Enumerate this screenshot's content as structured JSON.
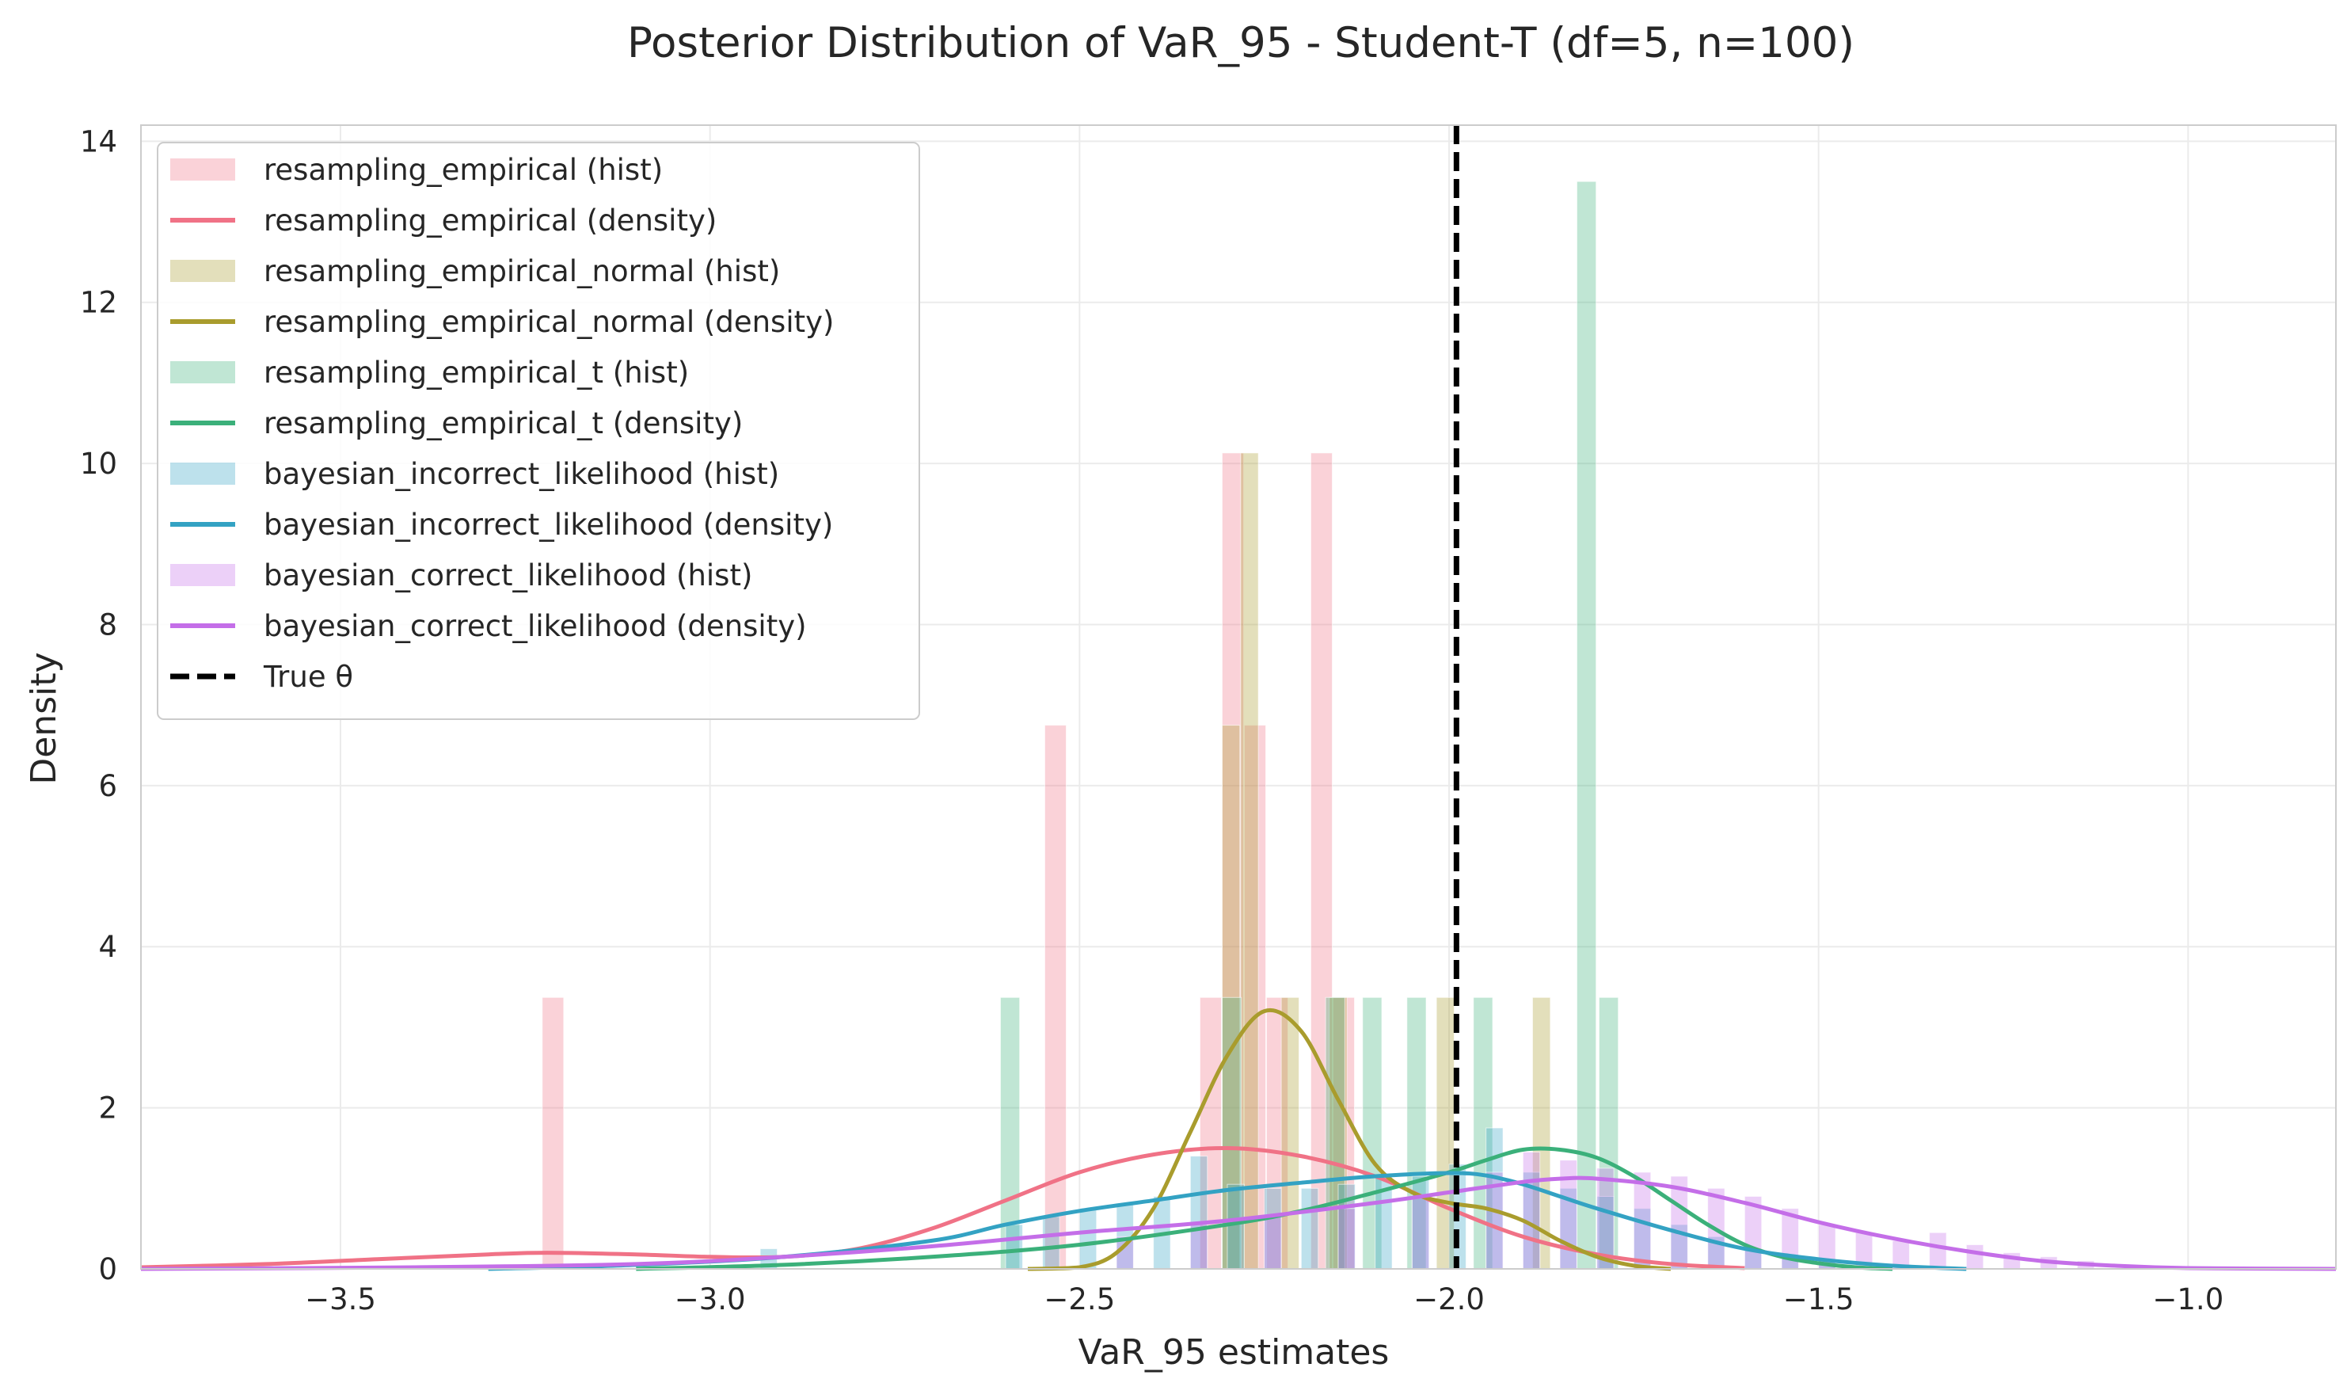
{
  "chart_data": {
    "type": "histogram+density",
    "title": "Posterior Distribution of VaR_95 - Student-T (df=5, n=100)",
    "xlabel": "VaR_95 estimates",
    "ylabel": "Density",
    "xlim": [
      -3.77,
      -0.8
    ],
    "ylim": [
      0,
      14.2
    ],
    "x_ticks": [
      -3.5,
      -3.0,
      -2.5,
      -2.0,
      -1.5,
      -1.0
    ],
    "x_tick_labels": [
      "−3.5",
      "−3.0",
      "−2.5",
      "−2.0",
      "−1.5",
      "−1.0"
    ],
    "y_ticks": [
      0,
      2,
      4,
      6,
      8,
      10,
      12,
      14
    ],
    "y_tick_labels": [
      "0",
      "2",
      "4",
      "6",
      "8",
      "10",
      "12",
      "14"
    ],
    "grid": true,
    "legend_position": "upper-left",
    "true_theta": {
      "label": "True θ",
      "x": -1.99,
      "color": "#000000"
    },
    "series": [
      {
        "name": "resampling_empirical",
        "color": "#f07286",
        "hist_label": "resampling_empirical (hist)",
        "density_label": "resampling_empirical (density)",
        "bin_width": 0.03,
        "hist": [
          {
            "x": -3.227,
            "h": 3.37
          },
          {
            "x": -2.547,
            "h": 6.75
          },
          {
            "x": -2.337,
            "h": 3.37
          },
          {
            "x": -2.307,
            "h": 10.13
          },
          {
            "x": -2.277,
            "h": 6.75
          },
          {
            "x": -2.247,
            "h": 3.37
          },
          {
            "x": -2.187,
            "h": 10.13
          },
          {
            "x": -2.157,
            "h": 3.37
          }
        ],
        "density": [
          [
            -3.77,
            0.02
          ],
          [
            -3.6,
            0.06
          ],
          [
            -3.45,
            0.12
          ],
          [
            -3.3,
            0.18
          ],
          [
            -3.22,
            0.2
          ],
          [
            -3.1,
            0.18
          ],
          [
            -3.0,
            0.15
          ],
          [
            -2.9,
            0.15
          ],
          [
            -2.8,
            0.25
          ],
          [
            -2.7,
            0.5
          ],
          [
            -2.6,
            0.85
          ],
          [
            -2.5,
            1.2
          ],
          [
            -2.4,
            1.42
          ],
          [
            -2.3,
            1.5
          ],
          [
            -2.2,
            1.4
          ],
          [
            -2.1,
            1.15
          ],
          [
            -2.0,
            0.75
          ],
          [
            -1.9,
            0.4
          ],
          [
            -1.8,
            0.18
          ],
          [
            -1.7,
            0.06
          ],
          [
            -1.6,
            0.01
          ]
        ]
      },
      {
        "name": "resampling_empirical_normal",
        "color": "#a99c2d",
        "hist_label": "resampling_empirical_normal (hist)",
        "density_label": "resampling_empirical_normal (density)",
        "bin_width": 0.025,
        "hist": [
          {
            "x": -2.307,
            "h": 6.75
          },
          {
            "x": -2.282,
            "h": 10.13
          },
          {
            "x": -2.227,
            "h": 3.37
          },
          {
            "x": -2.162,
            "h": 3.37
          },
          {
            "x": -2.017,
            "h": 3.37
          },
          {
            "x": -1.887,
            "h": 3.37
          }
        ],
        "density": [
          [
            -2.57,
            0.0
          ],
          [
            -2.5,
            0.02
          ],
          [
            -2.45,
            0.2
          ],
          [
            -2.4,
            0.75
          ],
          [
            -2.35,
            1.7
          ],
          [
            -2.3,
            2.65
          ],
          [
            -2.25,
            3.2
          ],
          [
            -2.2,
            2.95
          ],
          [
            -2.15,
            2.1
          ],
          [
            -2.1,
            1.3
          ],
          [
            -2.05,
            0.95
          ],
          [
            -2.0,
            0.82
          ],
          [
            -1.95,
            0.75
          ],
          [
            -1.9,
            0.6
          ],
          [
            -1.85,
            0.35
          ],
          [
            -1.8,
            0.15
          ],
          [
            -1.75,
            0.04
          ],
          [
            -1.7,
            0.0
          ]
        ]
      },
      {
        "name": "resampling_empirical_t",
        "color": "#3bb07a",
        "hist_label": "resampling_empirical_t (hist)",
        "density_label": "resampling_empirical_t (density)",
        "bin_width": 0.027,
        "hist": [
          {
            "x": -2.607,
            "h": 3.37
          },
          {
            "x": -2.307,
            "h": 3.37
          },
          {
            "x": -2.167,
            "h": 3.37
          },
          {
            "x": -2.117,
            "h": 3.37
          },
          {
            "x": -2.057,
            "h": 3.37
          },
          {
            "x": -1.967,
            "h": 3.37
          },
          {
            "x": -1.827,
            "h": 13.5
          },
          {
            "x": -1.797,
            "h": 3.37
          }
        ],
        "density": [
          [
            -3.1,
            0.0
          ],
          [
            -2.9,
            0.05
          ],
          [
            -2.7,
            0.15
          ],
          [
            -2.5,
            0.3
          ],
          [
            -2.3,
            0.55
          ],
          [
            -2.2,
            0.72
          ],
          [
            -2.1,
            0.95
          ],
          [
            -2.0,
            1.2
          ],
          [
            -1.95,
            1.35
          ],
          [
            -1.9,
            1.48
          ],
          [
            -1.85,
            1.48
          ],
          [
            -1.8,
            1.38
          ],
          [
            -1.75,
            1.15
          ],
          [
            -1.7,
            0.85
          ],
          [
            -1.65,
            0.55
          ],
          [
            -1.6,
            0.3
          ],
          [
            -1.55,
            0.15
          ],
          [
            -1.5,
            0.07
          ],
          [
            -1.45,
            0.02
          ],
          [
            -1.4,
            0.0
          ]
        ]
      },
      {
        "name": "bayesian_incorrect_likelihood",
        "color": "#33a2c3",
        "hist_label": "bayesian_incorrect_likelihood (hist)",
        "density_label": "bayesian_incorrect_likelihood (density)",
        "bin_width": 0.024,
        "hist": [
          {
            "x": -2.932,
            "h": 0.25
          },
          {
            "x": -2.6,
            "h": 0.55
          },
          {
            "x": -2.55,
            "h": 0.65
          },
          {
            "x": -2.5,
            "h": 0.75
          },
          {
            "x": -2.45,
            "h": 0.8
          },
          {
            "x": -2.4,
            "h": 0.9
          },
          {
            "x": -2.35,
            "h": 1.4
          },
          {
            "x": -2.3,
            "h": 1.05
          },
          {
            "x": -2.25,
            "h": 1.0
          },
          {
            "x": -2.2,
            "h": 1.0
          },
          {
            "x": -2.15,
            "h": 1.05
          },
          {
            "x": -2.1,
            "h": 1.15
          },
          {
            "x": -2.05,
            "h": 1.15
          },
          {
            "x": -2.0,
            "h": 1.3
          },
          {
            "x": -1.95,
            "h": 1.75
          },
          {
            "x": -1.9,
            "h": 1.2
          },
          {
            "x": -1.85,
            "h": 1.0
          },
          {
            "x": -1.8,
            "h": 0.9
          },
          {
            "x": -1.75,
            "h": 0.75
          },
          {
            "x": -1.7,
            "h": 0.55
          },
          {
            "x": -1.65,
            "h": 0.4
          },
          {
            "x": -1.6,
            "h": 0.25
          },
          {
            "x": -1.55,
            "h": 0.15
          },
          {
            "x": -1.5,
            "h": 0.1
          }
        ],
        "density": [
          [
            -3.3,
            0.0
          ],
          [
            -3.1,
            0.05
          ],
          [
            -2.9,
            0.15
          ],
          [
            -2.7,
            0.35
          ],
          [
            -2.6,
            0.55
          ],
          [
            -2.5,
            0.72
          ],
          [
            -2.4,
            0.85
          ],
          [
            -2.3,
            0.98
          ],
          [
            -2.2,
            1.07
          ],
          [
            -2.1,
            1.15
          ],
          [
            -2.0,
            1.19
          ],
          [
            -1.95,
            1.16
          ],
          [
            -1.9,
            1.05
          ],
          [
            -1.85,
            0.9
          ],
          [
            -1.8,
            0.75
          ],
          [
            -1.7,
            0.48
          ],
          [
            -1.6,
            0.25
          ],
          [
            -1.5,
            0.12
          ],
          [
            -1.4,
            0.04
          ],
          [
            -1.3,
            0.0
          ]
        ]
      },
      {
        "name": "bayesian_correct_likelihood",
        "color": "#c46ee8",
        "hist_label": "bayesian_correct_likelihood (hist)",
        "density_label": "bayesian_correct_likelihood (density)",
        "bin_width": 0.024,
        "hist": [
          {
            "x": -2.45,
            "h": 0.4
          },
          {
            "x": -2.35,
            "h": 0.55
          },
          {
            "x": -2.25,
            "h": 0.65
          },
          {
            "x": -2.15,
            "h": 0.75
          },
          {
            "x": -2.05,
            "h": 0.9
          },
          {
            "x": -1.95,
            "h": 1.2
          },
          {
            "x": -1.9,
            "h": 1.45
          },
          {
            "x": -1.85,
            "h": 1.35
          },
          {
            "x": -1.8,
            "h": 1.25
          },
          {
            "x": -1.75,
            "h": 1.2
          },
          {
            "x": -1.7,
            "h": 1.15
          },
          {
            "x": -1.65,
            "h": 1.0
          },
          {
            "x": -1.6,
            "h": 0.9
          },
          {
            "x": -1.55,
            "h": 0.75
          },
          {
            "x": -1.5,
            "h": 0.55
          },
          {
            "x": -1.45,
            "h": 0.45
          },
          {
            "x": -1.4,
            "h": 0.35
          },
          {
            "x": -1.35,
            "h": 0.45
          },
          {
            "x": -1.3,
            "h": 0.3
          },
          {
            "x": -1.25,
            "h": 0.2
          },
          {
            "x": -1.2,
            "h": 0.15
          },
          {
            "x": -1.15,
            "h": 0.1
          }
        ],
        "density": [
          [
            -3.77,
            0.0
          ],
          [
            -3.4,
            0.02
          ],
          [
            -3.1,
            0.06
          ],
          [
            -2.9,
            0.15
          ],
          [
            -2.7,
            0.28
          ],
          [
            -2.5,
            0.45
          ],
          [
            -2.3,
            0.6
          ],
          [
            -2.1,
            0.82
          ],
          [
            -2.0,
            0.95
          ],
          [
            -1.9,
            1.08
          ],
          [
            -1.85,
            1.12
          ],
          [
            -1.8,
            1.12
          ],
          [
            -1.7,
            1.02
          ],
          [
            -1.6,
            0.82
          ],
          [
            -1.5,
            0.58
          ],
          [
            -1.4,
            0.38
          ],
          [
            -1.3,
            0.22
          ],
          [
            -1.2,
            0.1
          ],
          [
            -1.1,
            0.04
          ],
          [
            -1.0,
            0.01
          ],
          [
            -0.8,
            0.0
          ]
        ]
      }
    ]
  }
}
